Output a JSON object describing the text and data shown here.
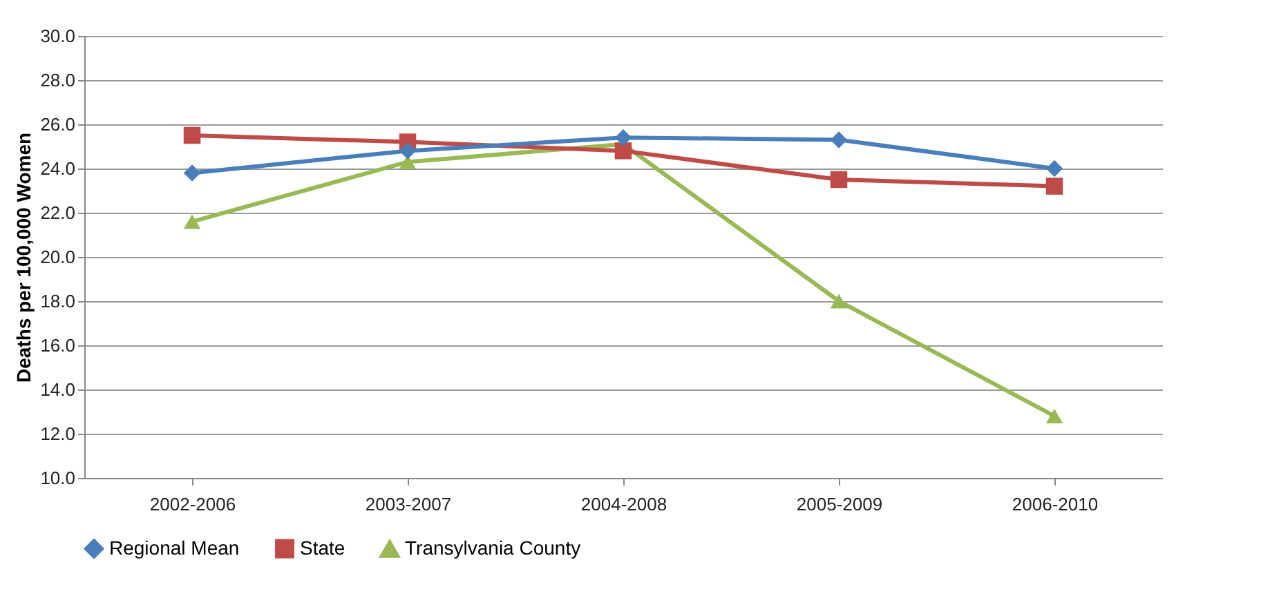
{
  "chart_data": {
    "type": "line",
    "ylabel": "Deaths per 100,000 Women",
    "categories": [
      "2002-2006",
      "2003-2007",
      "2004-2008",
      "2005-2009",
      "2006-2010"
    ],
    "series": [
      {
        "name": "Regional Mean",
        "color": "#4a7ebb",
        "marker": "diamond",
        "values": [
          23.8,
          24.8,
          25.4,
          25.3,
          24.0
        ]
      },
      {
        "name": "State",
        "color": "#be4b48",
        "marker": "square",
        "values": [
          25.5,
          25.2,
          24.8,
          23.5,
          23.2
        ]
      },
      {
        "name": "Transylvania County",
        "color": "#98b954",
        "marker": "triangle",
        "values": [
          21.6,
          24.3,
          25.1,
          18.0,
          12.8
        ]
      }
    ],
    "ylim": [
      10,
      30
    ],
    "yticks": [
      {
        "value": 10,
        "label": "10.0"
      },
      {
        "value": 12,
        "label": "12.0"
      },
      {
        "value": 14,
        "label": "14.0"
      },
      {
        "value": 16,
        "label": "16.0"
      },
      {
        "value": 18,
        "label": "18.0"
      },
      {
        "value": 20,
        "label": "20.0"
      },
      {
        "value": 22,
        "label": "22.0"
      },
      {
        "value": 24,
        "label": "24.0"
      },
      {
        "value": 26,
        "label": "26.0"
      },
      {
        "value": 28,
        "label": "28.0"
      },
      {
        "value": 30,
        "label": "30.0"
      }
    ],
    "grid": "y",
    "legend": "bottom"
  }
}
